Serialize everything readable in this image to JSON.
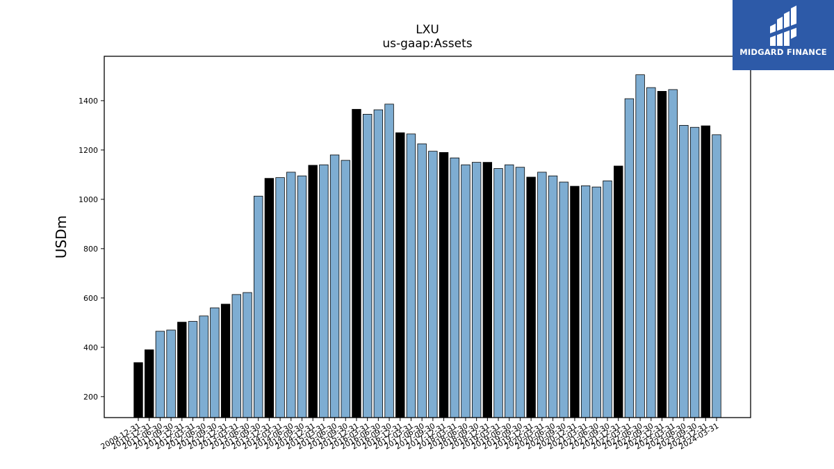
{
  "logo": {
    "text": "MIDGARD FINANCE"
  },
  "colors": {
    "bar_q4": "#000000",
    "bar_other": "#7eadd2",
    "logo_bg": "#2d5aa8"
  },
  "chart_data": {
    "type": "bar",
    "title": "LXU",
    "subtitle": "us-gaap:Assets",
    "ylabel": "USDm",
    "xlabel": "",
    "ylim": [
      115,
      1580
    ],
    "yticks": [
      200,
      400,
      600,
      800,
      1000,
      1200,
      1400
    ],
    "grid": false,
    "categories": [
      "2009-12-31",
      "2010-12-31",
      "2011-06-30",
      "2011-09-30",
      "2011-12-31",
      "2012-03-31",
      "2012-06-30",
      "2012-09-30",
      "2012-12-31",
      "2013-03-31",
      "2013-06-30",
      "2013-09-30",
      "2013-12-31",
      "2014-03-31",
      "2014-06-30",
      "2014-09-30",
      "2014-12-31",
      "2015-03-31",
      "2015-06-30",
      "2015-09-30",
      "2015-12-31",
      "2016-03-31",
      "2016-06-30",
      "2016-09-30",
      "2016-12-31",
      "2017-03-31",
      "2017-06-30",
      "2017-09-30",
      "2017-12-31",
      "2018-03-31",
      "2018-06-30",
      "2018-09-30",
      "2018-12-31",
      "2019-03-31",
      "2019-06-30",
      "2019-09-30",
      "2019-12-31",
      "2020-03-31",
      "2020-06-30",
      "2020-09-30",
      "2020-12-31",
      "2021-03-31",
      "2021-06-30",
      "2021-09-30",
      "2021-12-31",
      "2022-03-31",
      "2022-06-30",
      "2022-09-30",
      "2022-12-31",
      "2023-03-31",
      "2023-06-30",
      "2023-09-30",
      "2023-12-31",
      "2024-03-31"
    ],
    "values": [
      338,
      390,
      465,
      470,
      502,
      505,
      527,
      560,
      575,
      614,
      622,
      1013,
      1085,
      1088,
      1110,
      1095,
      1138,
      1140,
      1180,
      1158,
      1365,
      1345,
      1363,
      1386,
      1270,
      1265,
      1225,
      1195,
      1190,
      1168,
      1140,
      1150,
      1150,
      1125,
      1140,
      1130,
      1090,
      1110,
      1095,
      1070,
      1053,
      1055,
      1050,
      1075,
      1135,
      1408,
      1505,
      1453,
      1438,
      1445,
      1300,
      1292,
      1298,
      1262
    ],
    "highlight": [
      true,
      true,
      false,
      false,
      true,
      false,
      false,
      false,
      true,
      false,
      false,
      false,
      true,
      false,
      false,
      false,
      true,
      false,
      false,
      false,
      true,
      false,
      false,
      false,
      true,
      false,
      false,
      false,
      true,
      false,
      false,
      false,
      true,
      false,
      false,
      false,
      true,
      false,
      false,
      false,
      true,
      false,
      false,
      false,
      true,
      false,
      false,
      false,
      true,
      false,
      false,
      false,
      true,
      false
    ]
  }
}
